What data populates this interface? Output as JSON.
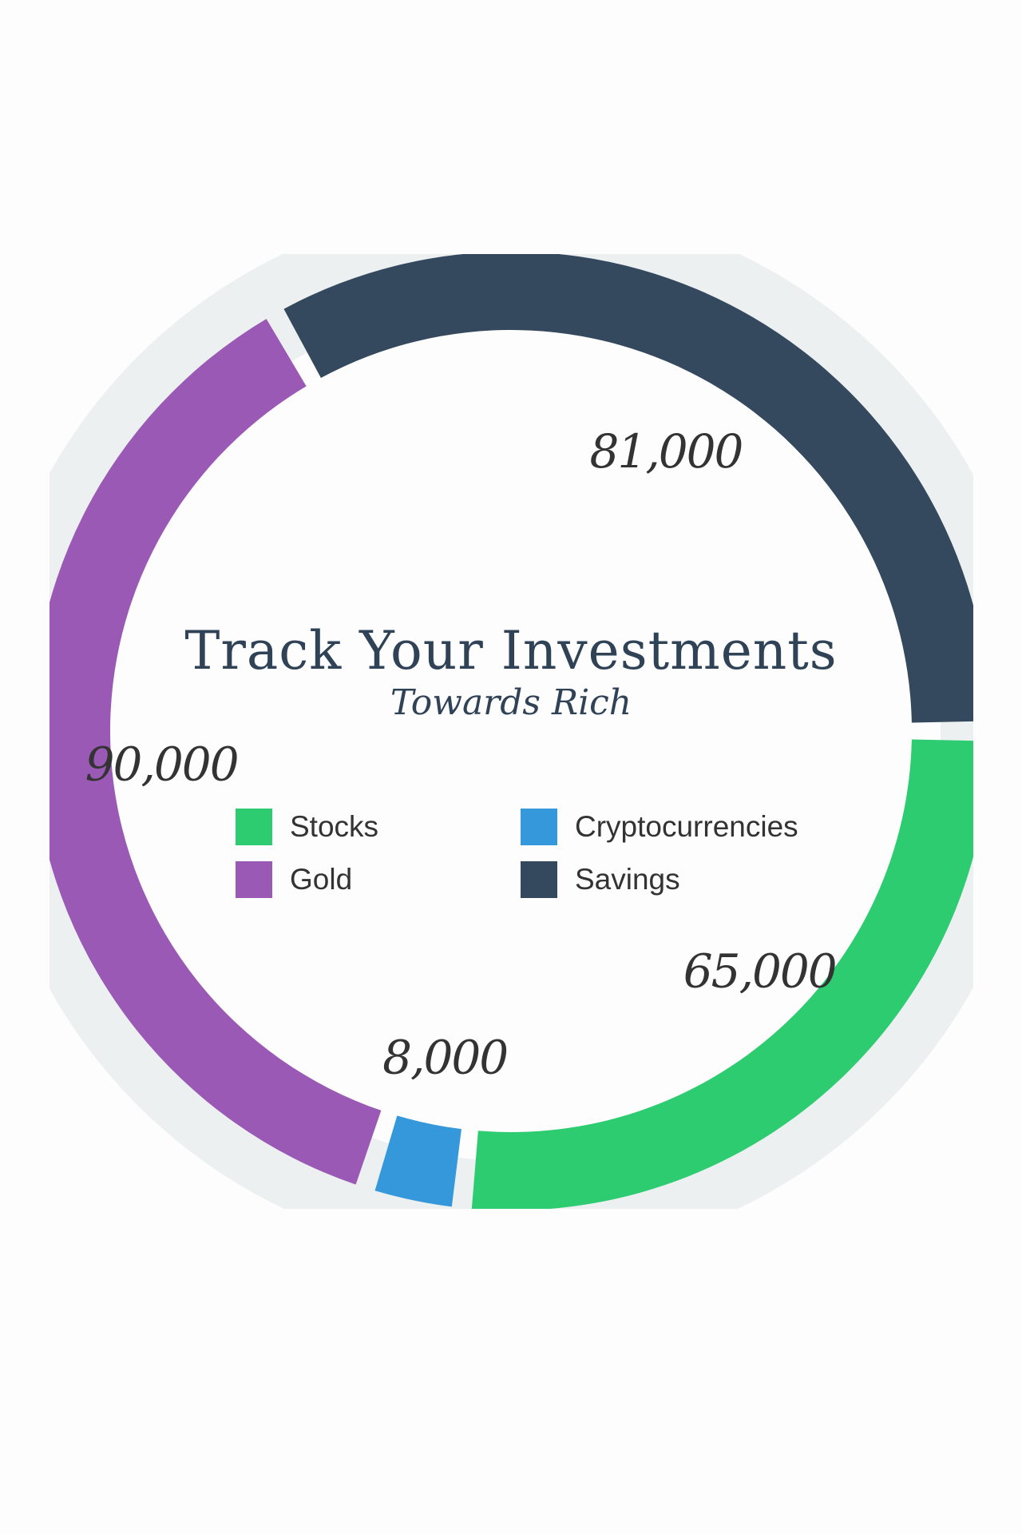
{
  "chart_data": {
    "type": "pie",
    "title": "Track Your Investments",
    "subtitle": "Towards Rich",
    "series": [
      {
        "name": "Stocks",
        "value": 65000,
        "label": "65,000",
        "color": "#2ecc71"
      },
      {
        "name": "Cryptocurrencies",
        "value": 8000,
        "label": "8,000",
        "color": "#3498db"
      },
      {
        "name": "Gold",
        "value": 90000,
        "label": "90,000",
        "color": "#9b59b6"
      },
      {
        "name": "Savings",
        "value": 81000,
        "label": "81,000",
        "color": "#34495e"
      }
    ],
    "legend": {
      "placement": "center",
      "items": [
        {
          "label": "Stocks",
          "color": "#2ecc71"
        },
        {
          "label": "Cryptocurrencies",
          "color": "#3498db"
        },
        {
          "label": "Gold",
          "color": "#9b59b6"
        },
        {
          "label": "Savings",
          "color": "#34495e"
        }
      ]
    },
    "track_color": "#ecf0f1",
    "style": "donut"
  }
}
